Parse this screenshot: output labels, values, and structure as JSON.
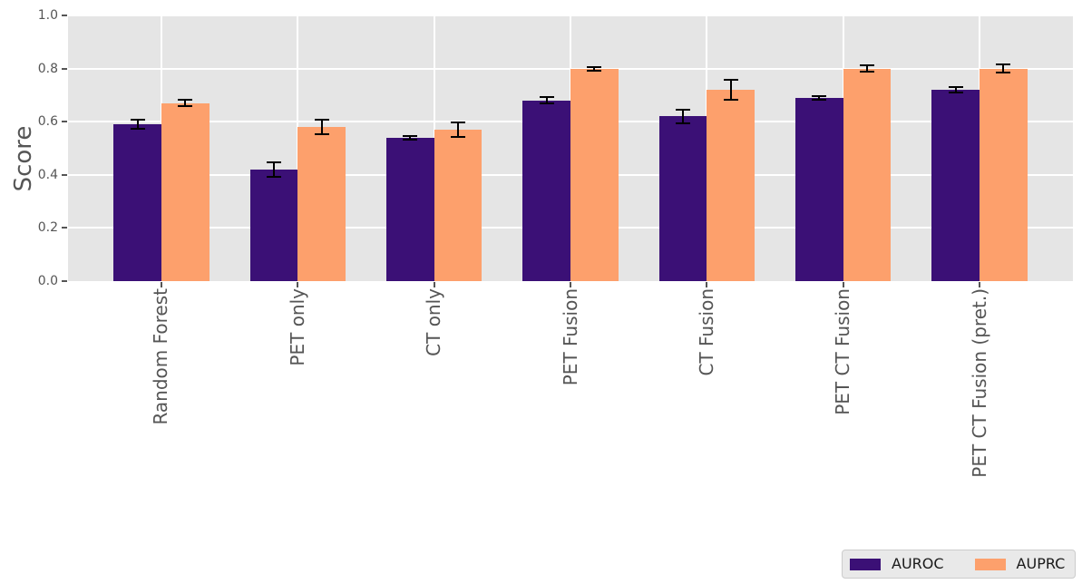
{
  "chart_data": {
    "type": "bar",
    "title": "",
    "xlabel": "",
    "ylabel": "Score",
    "categories": [
      "Random Forest",
      "PET only",
      "CT only",
      "PET Fusion",
      "CT Fusion",
      "PET CT Fusion",
      "PET CT Fusion (pret.)"
    ],
    "series": [
      {
        "name": "AUROC",
        "color": "#3b1076",
        "values": [
          0.59,
          0.42,
          0.54,
          0.68,
          0.62,
          0.69,
          0.72
        ],
        "errors": [
          0.02,
          0.03,
          0.01,
          0.015,
          0.03,
          0.01,
          0.015
        ]
      },
      {
        "name": "AUPRC",
        "color": "#fda06c",
        "values": [
          0.67,
          0.58,
          0.57,
          0.8,
          0.72,
          0.8,
          0.8
        ],
        "errors": [
          0.015,
          0.03,
          0.03,
          0.01,
          0.04,
          0.015,
          0.02
        ]
      }
    ],
    "ylim": [
      0,
      1
    ],
    "yticks": [
      "0.0",
      "0.2",
      "0.4",
      "0.6",
      "0.8",
      "1.0"
    ],
    "grid": true,
    "error_bars": true,
    "legend_position": "bottom-right",
    "plot_background": "#e5e5e5",
    "grid_color": "#ffffff",
    "tick_label_color": "#555555",
    "error_bar_color": "#000000",
    "bar_width_fraction": 0.35
  }
}
